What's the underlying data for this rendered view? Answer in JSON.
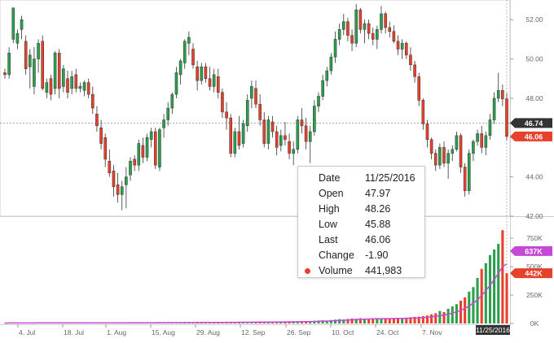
{
  "chart_data": {
    "type": "candlestick",
    "x_ticks": [
      "4. Jul",
      "18. Jul",
      "1. Aug",
      "15. Aug",
      "29. Aug",
      "12. Sep",
      "26. Sep",
      "10. Oct",
      "24. Oct",
      "7. Nov",
      "11/25/2016"
    ],
    "price_axis": {
      "ylim": [
        42,
        53
      ],
      "ticks": [
        "52.00",
        "50.00",
        "48.00",
        "46.00",
        "44.00",
        "42.00"
      ]
    },
    "volume_axis": {
      "ylim": [
        0,
        900000
      ],
      "ticks": [
        "750K",
        "500K",
        "250K",
        "0K"
      ]
    },
    "reference_line": {
      "value": 46.74,
      "label": "46.74",
      "color": "#333333"
    },
    "last_price": {
      "value": 46.06,
      "label": "46.06",
      "color": "#e8412b"
    },
    "volume_ma_badge": {
      "value": 637000,
      "label": "637K",
      "color": "#c548d6"
    },
    "last_volume_badge": {
      "value": 442000,
      "label": "442K",
      "color": "#e8412b"
    },
    "candles": [
      [
        49.3,
        49.5,
        49.0,
        49.2
      ],
      [
        49.2,
        50.6,
        49.0,
        50.3
      ],
      [
        51.0,
        52.6,
        50.8,
        52.6
      ],
      [
        50.8,
        51.5,
        50.5,
        51.3
      ],
      [
        51.5,
        52.2,
        51.0,
        52.0
      ],
      [
        50.9,
        51.2,
        49.2,
        49.5
      ],
      [
        49.6,
        50.5,
        48.5,
        50.2
      ],
      [
        48.6,
        50.6,
        48.2,
        50.0
      ],
      [
        50.0,
        51.0,
        49.3,
        50.8
      ],
      [
        50.9,
        51.2,
        48.4,
        48.5
      ],
      [
        48.3,
        49.0,
        48.0,
        48.8
      ],
      [
        49.0,
        49.2,
        47.9,
        48.2
      ],
      [
        48.5,
        50.4,
        48.2,
        50.3
      ],
      [
        50.3,
        50.5,
        48.0,
        48.5
      ],
      [
        48.6,
        49.7,
        48.3,
        49.5
      ],
      [
        49.0,
        49.4,
        48.0,
        48.3
      ],
      [
        48.5,
        49.4,
        48.2,
        49.1
      ],
      [
        49.2,
        49.5,
        48.3,
        48.5
      ],
      [
        48.5,
        48.8,
        48.3,
        48.6
      ],
      [
        48.4,
        48.9,
        48.1,
        48.8
      ],
      [
        48.8,
        49.0,
        48.0,
        48.2
      ],
      [
        48.2,
        48.6,
        47.2,
        47.5
      ],
      [
        47.2,
        47.6,
        46.3,
        46.6
      ],
      [
        46.5,
        46.9,
        45.4,
        45.7
      ],
      [
        46.0,
        46.2,
        44.5,
        44.9
      ],
      [
        44.8,
        45.4,
        44.0,
        44.2
      ],
      [
        44.3,
        44.6,
        43.0,
        43.5
      ],
      [
        43.6,
        44.2,
        42.7,
        43.1
      ],
      [
        43.1,
        43.8,
        42.3,
        43.5
      ],
      [
        43.6,
        44.5,
        42.4,
        44.0
      ],
      [
        44.1,
        45.0,
        43.8,
        44.8
      ],
      [
        44.9,
        45.1,
        44.3,
        44.6
      ],
      [
        44.6,
        45.9,
        44.3,
        45.7
      ],
      [
        45.6,
        46.0,
        44.7,
        45.0
      ],
      [
        45.0,
        46.2,
        44.8,
        46.0
      ],
      [
        45.9,
        46.5,
        45.5,
        46.3
      ],
      [
        46.3,
        46.5,
        44.4,
        44.6
      ],
      [
        44.5,
        46.5,
        44.3,
        46.4
      ],
      [
        46.5,
        47.2,
        46.0,
        46.9
      ],
      [
        46.9,
        47.8,
        46.6,
        47.5
      ],
      [
        47.5,
        48.3,
        47.2,
        48.2
      ],
      [
        48.2,
        49.6,
        48.0,
        49.3
      ],
      [
        49.2,
        50.0,
        48.7,
        49.9
      ],
      [
        49.8,
        51.0,
        49.5,
        50.9
      ],
      [
        50.8,
        51.4,
        50.2,
        51.1
      ],
      [
        50.5,
        50.8,
        49.5,
        49.7
      ],
      [
        49.6,
        49.9,
        48.4,
        48.9
      ],
      [
        48.9,
        49.8,
        48.7,
        49.6
      ],
      [
        49.6,
        49.8,
        48.8,
        49.0
      ],
      [
        49.0,
        49.6,
        48.4,
        48.6
      ],
      [
        48.6,
        49.5,
        48.3,
        49.2
      ],
      [
        49.1,
        49.5,
        48.0,
        48.3
      ],
      [
        48.3,
        48.5,
        47.0,
        47.3
      ],
      [
        47.3,
        47.8,
        46.4,
        47.0
      ],
      [
        47.0,
        47.2,
        45.0,
        45.2
      ],
      [
        45.2,
        46.5,
        45.0,
        46.3
      ],
      [
        46.3,
        47.1,
        45.4,
        45.6
      ],
      [
        45.7,
        46.9,
        45.5,
        46.7
      ],
      [
        46.6,
        48.2,
        46.3,
        47.9
      ],
      [
        48.0,
        48.9,
        47.5,
        48.6
      ],
      [
        48.5,
        48.9,
        47.5,
        47.7
      ],
      [
        47.7,
        48.2,
        46.6,
        46.9
      ],
      [
        46.9,
        47.3,
        45.5,
        45.7
      ],
      [
        45.7,
        47.1,
        45.4,
        46.9
      ],
      [
        46.8,
        47.1,
        46.0,
        46.3
      ],
      [
        46.3,
        46.6,
        45.1,
        45.5
      ],
      [
        45.6,
        46.4,
        45.3,
        46.1
      ],
      [
        46.1,
        46.8,
        45.6,
        45.9
      ],
      [
        45.8,
        46.2,
        44.9,
        45.2
      ],
      [
        45.2,
        45.8,
        44.6,
        45.4
      ],
      [
        45.4,
        47.1,
        45.2,
        46.9
      ],
      [
        46.9,
        47.5,
        46.2,
        46.6
      ],
      [
        46.6,
        47.0,
        45.4,
        45.8
      ],
      [
        45.8,
        46.6,
        44.7,
        46.3
      ],
      [
        46.3,
        47.9,
        46.1,
        47.6
      ],
      [
        47.6,
        48.3,
        47.3,
        48.1
      ],
      [
        48.1,
        49.2,
        47.9,
        48.9
      ],
      [
        48.9,
        49.6,
        48.6,
        49.4
      ],
      [
        49.4,
        50.3,
        49.2,
        50.1
      ],
      [
        50.1,
        51.4,
        49.8,
        51.0
      ],
      [
        51.0,
        51.8,
        50.7,
        51.5
      ],
      [
        51.5,
        52.3,
        51.2,
        51.9
      ],
      [
        51.9,
        52.1,
        50.9,
        51.2
      ],
      [
        51.2,
        51.5,
        50.4,
        50.8
      ],
      [
        50.8,
        52.8,
        50.6,
        52.5
      ],
      [
        52.5,
        52.6,
        51.3,
        51.5
      ],
      [
        51.5,
        52.0,
        50.8,
        51.8
      ],
      [
        51.8,
        52.0,
        51.0,
        51.3
      ],
      [
        51.3,
        51.6,
        50.7,
        51.0
      ],
      [
        51.0,
        51.7,
        50.5,
        51.5
      ],
      [
        51.5,
        52.7,
        51.3,
        52.3
      ],
      [
        52.3,
        52.4,
        51.3,
        51.6
      ],
      [
        51.6,
        51.9,
        51.1,
        51.4
      ],
      [
        51.4,
        51.7,
        50.8,
        50.9
      ],
      [
        50.9,
        51.2,
        50.2,
        50.5
      ],
      [
        50.5,
        51.0,
        50.0,
        50.8
      ],
      [
        50.8,
        50.9,
        50.0,
        50.2
      ],
      [
        50.2,
        50.6,
        49.4,
        49.7
      ],
      [
        49.7,
        49.9,
        48.8,
        49.1
      ],
      [
        49.1,
        49.3,
        47.6,
        47.9
      ],
      [
        47.9,
        48.0,
        46.4,
        46.7
      ],
      [
        46.7,
        46.9,
        45.5,
        45.9
      ],
      [
        45.9,
        46.0,
        44.9,
        45.2
      ],
      [
        45.2,
        45.4,
        44.3,
        44.6
      ],
      [
        44.6,
        45.7,
        44.4,
        45.5
      ],
      [
        45.5,
        45.8,
        44.5,
        44.7
      ],
      [
        44.7,
        45.4,
        43.9,
        45.2
      ],
      [
        45.2,
        45.6,
        44.8,
        45.4
      ],
      [
        45.4,
        46.3,
        45.3,
        46.1
      ],
      [
        46.1,
        46.2,
        44.2,
        44.5
      ],
      [
        44.5,
        44.7,
        43.0,
        43.3
      ],
      [
        43.3,
        45.4,
        43.1,
        45.2
      ],
      [
        45.2,
        45.9,
        44.8,
        45.8
      ],
      [
        45.8,
        46.4,
        45.6,
        46.2
      ],
      [
        46.2,
        46.6,
        45.2,
        45.5
      ],
      [
        45.5,
        46.3,
        45.1,
        46.1
      ],
      [
        46.1,
        47.2,
        45.9,
        46.9
      ],
      [
        46.9,
        48.3,
        46.7,
        48.0
      ],
      [
        48.0,
        49.3,
        47.8,
        48.4
      ],
      [
        48.4,
        48.7,
        47.6,
        47.97
      ],
      [
        47.97,
        48.26,
        45.88,
        46.06
      ]
    ],
    "volume_raw": [
      3,
      5,
      4,
      6,
      4,
      5,
      4,
      5,
      6,
      5,
      4,
      5,
      4,
      5,
      6,
      5,
      4,
      5,
      4,
      5,
      6,
      5,
      7,
      6,
      5,
      7,
      6,
      5,
      6,
      7,
      8,
      6,
      7,
      6,
      7,
      8,
      6,
      7,
      8,
      7,
      9,
      8,
      9,
      8,
      10,
      9,
      8,
      9,
      10,
      9,
      10,
      11,
      10,
      12,
      11,
      10,
      12,
      13,
      11,
      12,
      14,
      13,
      15,
      14,
      13,
      15,
      16,
      14,
      17,
      16,
      18,
      20,
      22,
      19,
      24,
      26,
      28,
      25,
      30,
      34,
      38,
      36,
      40,
      44,
      42,
      46,
      44,
      40,
      45,
      43,
      41,
      44,
      42,
      46,
      50,
      48,
      52,
      55,
      58,
      60,
      64,
      70,
      80,
      90,
      110,
      100,
      130,
      150,
      170,
      200,
      230,
      280,
      320,
      400,
      480,
      530,
      600,
      650,
      700,
      820,
      442
    ]
  }
}
